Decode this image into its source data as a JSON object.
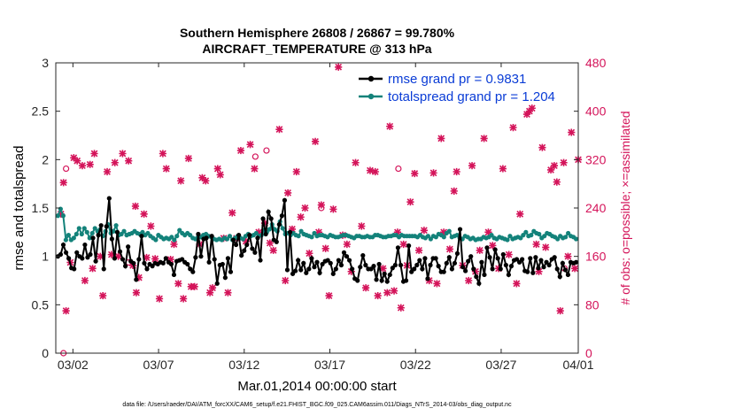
{
  "chart_data": {
    "type": "line",
    "title_line1": "Southern Hemisphere 26808 / 26867 = 99.780%",
    "title_line2": "AIRCRAFT_TEMPERATURE @ 313 hPa",
    "xlabel": "Mar.01,2014 00:00:00 start",
    "ylabel": "rmse and totalspread",
    "y2label": "# of obs: o=possible; ×=assimilated",
    "xlim": [
      0.5,
      31.0
    ],
    "ylim": [
      0,
      3
    ],
    "y2lim": [
      0,
      480
    ],
    "x_ticks": [
      {
        "x": 1.5,
        "label": "03/02"
      },
      {
        "x": 6.5,
        "label": "03/07"
      },
      {
        "x": 11.5,
        "label": "03/12"
      },
      {
        "x": 16.5,
        "label": "03/17"
      },
      {
        "x": 21.5,
        "label": "03/22"
      },
      {
        "x": 26.5,
        "label": "03/27"
      },
      {
        "x": 31.0,
        "label": "04/01"
      }
    ],
    "y_ticks": [
      {
        "v": 0,
        "label": "0"
      },
      {
        "v": 0.5,
        "label": "0.5"
      },
      {
        "v": 1,
        "label": "1"
      },
      {
        "v": 1.5,
        "label": "1.5"
      },
      {
        "v": 2,
        "label": "2"
      },
      {
        "v": 2.5,
        "label": "2.5"
      },
      {
        "v": 3,
        "label": "3"
      }
    ],
    "y2_ticks": [
      {
        "v": 0,
        "label": "0"
      },
      {
        "v": 80,
        "label": "80"
      },
      {
        "v": 160,
        "label": "160"
      },
      {
        "v": 240,
        "label": "240"
      },
      {
        "v": 320,
        "label": "320"
      },
      {
        "v": 400,
        "label": "400"
      },
      {
        "v": 480,
        "label": "480"
      }
    ],
    "series": [
      {
        "name": "rmse grand pr = 0.9831",
        "color": "#000000",
        "values": [
          1.0,
          1.02,
          1.12,
          1.04,
          0.98,
          0.88,
          0.87,
          1.04,
          1.0,
          0.98,
          1.12,
          0.99,
          1.02,
          1.19,
          0.95,
          1.22,
          1.32,
          0.87,
          1.31,
          1.6,
          1.18,
          0.98,
          1.25,
          1.05,
          0.97,
          0.9,
          1.1,
          0.95,
          0.93,
          0.76,
          0.97,
          1.21,
          0.93,
          0.87,
          0.92,
          0.9,
          0.93,
          0.92,
          0.94,
          0.93,
          0.98,
          0.94,
          0.92,
          0.81,
          0.95,
          0.96,
          0.97,
          0.94,
          0.92,
          0.87,
          0.84,
          0.99,
          1.23,
          1.0,
          1.18,
          1.19,
          0.94,
          1.21,
          0.97,
          0.72,
          0.91,
          0.92,
          0.78,
          0.98,
          0.84,
          1.17,
          1.12,
          1.22,
          1.01,
          1.06,
          1.12,
          1.22,
          1.08,
          1.04,
          1.19,
          0.96,
          1.39,
          1.23,
          1.46,
          1.39,
          1.17,
          1.15,
          1.33,
          1.42,
          1.58,
          0.86,
          1.25,
          0.82,
          0.85,
          0.96,
          0.86,
          0.93,
          0.83,
          0.87,
          0.98,
          0.89,
          0.94,
          0.83,
          0.92,
          0.95,
          0.96,
          0.93,
          0.82,
          0.87,
          0.96,
          0.91,
          1.04,
          1.0,
          0.96,
          0.87,
          0.77,
          0.75,
          0.89,
          1.01,
          0.91,
          0.87,
          0.87,
          0.9,
          0.76,
          0.92,
          0.75,
          0.82,
          0.74,
          0.81,
          0.88,
          0.91,
          1.09,
          0.91,
          0.74,
          0.75,
          1.11,
          0.84,
          0.87,
          0.91,
          0.96,
          0.87,
          0.98,
          0.77,
          0.91,
          0.98,
          0.98,
          0.9,
          0.84,
          0.84,
          0.93,
          0.99,
          0.87,
          0.93,
          1.03,
          1.28,
          0.89,
          0.85,
          0.95,
          1.0,
          0.87,
          0.79,
          0.72,
          0.94,
          0.81,
          1.09,
          0.99,
          0.87,
          1.07,
          0.98,
          0.87,
          1.02,
          0.91,
          0.81,
          0.9,
          0.96,
          0.97,
          0.94,
          0.97,
          0.85,
          0.84,
          0.98,
          0.83,
          0.99,
          0.88,
          0.96,
          0.89,
          0.94,
          0.91,
          0.97,
          0.99,
          0.87,
          0.79,
          0.93,
          0.86,
          0.81,
          0.94,
          0.93,
          0.94
        ]
      },
      {
        "name": "totalspread grand pr = 1.204",
        "color": "#13827a",
        "values": [
          1.42,
          1.49,
          1.42,
          1.17,
          1.22,
          1.17,
          1.19,
          1.23,
          1.29,
          1.23,
          1.29,
          1.25,
          1.19,
          1.24,
          1.29,
          1.26,
          1.28,
          1.21,
          1.26,
          1.33,
          1.24,
          1.26,
          1.32,
          1.22,
          1.23,
          1.26,
          1.22,
          1.23,
          1.24,
          1.26,
          1.24,
          1.23,
          1.25,
          1.22,
          1.24,
          1.21,
          1.19,
          1.17,
          1.22,
          1.2,
          1.18,
          1.19,
          1.18,
          1.2,
          1.17,
          1.21,
          1.27,
          1.24,
          1.22,
          1.24,
          1.22,
          1.19,
          1.18,
          1.2,
          1.2,
          1.22,
          1.23,
          1.21,
          1.2,
          1.18,
          1.17,
          1.18,
          1.17,
          1.19,
          1.18,
          1.21,
          1.17,
          1.19,
          1.21,
          1.19,
          1.18,
          1.21,
          1.23,
          1.21,
          1.22,
          1.24,
          1.21,
          1.22,
          1.27,
          1.25,
          1.28,
          1.33,
          1.28,
          1.26,
          1.36,
          1.29,
          1.23,
          1.24,
          1.22,
          1.24,
          1.22,
          1.21,
          1.26,
          1.23,
          1.22,
          1.21,
          1.2,
          1.24,
          1.21,
          1.22,
          1.22,
          1.21,
          1.2,
          1.22,
          1.21,
          1.2,
          1.2,
          1.21,
          1.22,
          1.22,
          1.21,
          1.2,
          1.19,
          1.21,
          1.21,
          1.2,
          1.2,
          1.21,
          1.2,
          1.2,
          1.22,
          1.22,
          1.21,
          1.2,
          1.2,
          1.21,
          1.21,
          1.22,
          1.22,
          1.2,
          1.22,
          1.21,
          1.21,
          1.21,
          1.21,
          1.21,
          1.2,
          1.22,
          1.2,
          1.19,
          1.21,
          1.18,
          1.21,
          1.2,
          1.23,
          1.22,
          1.2,
          1.24,
          1.26,
          1.2,
          1.21,
          1.22,
          1.19,
          1.18,
          1.21,
          1.2,
          1.18,
          1.19,
          1.17,
          1.18,
          1.18,
          1.2,
          1.19,
          1.2,
          1.22,
          1.19,
          1.18,
          1.2,
          1.19,
          1.18,
          1.17,
          1.21,
          1.18,
          1.19,
          1.2,
          1.19,
          1.22,
          1.25,
          1.21,
          1.22,
          1.26,
          1.24,
          1.23,
          1.19,
          1.21,
          1.24,
          1.23,
          1.21,
          1.2,
          1.18,
          1.21,
          1.19,
          1.2,
          1.24,
          1.21,
          1.2,
          1.18
        ]
      }
    ],
    "obs_assimilated": [
      [
        0.8,
        230
      ],
      [
        0.95,
        282
      ],
      [
        1.1,
        70
      ],
      [
        1.35,
        150
      ],
      [
        1.55,
        323
      ],
      [
        1.75,
        318
      ],
      [
        2.05,
        310
      ],
      [
        2.2,
        120
      ],
      [
        2.5,
        312
      ],
      [
        2.65,
        140
      ],
      [
        2.75,
        330
      ],
      [
        3.1,
        160
      ],
      [
        3.25,
        95
      ],
      [
        3.5,
        300
      ],
      [
        3.75,
        163
      ],
      [
        3.95,
        315
      ],
      [
        4.15,
        160
      ],
      [
        4.4,
        330
      ],
      [
        4.75,
        318
      ],
      [
        5.0,
        145
      ],
      [
        5.15,
        243
      ],
      [
        5.2,
        100
      ],
      [
        5.35,
        125
      ],
      [
        5.65,
        230
      ],
      [
        5.8,
        158
      ],
      [
        6.05,
        210
      ],
      [
        6.3,
        156
      ],
      [
        6.55,
        90
      ],
      [
        6.75,
        330
      ],
      [
        6.95,
        305
      ],
      [
        7.2,
        155
      ],
      [
        7.4,
        180
      ],
      [
        7.65,
        115
      ],
      [
        7.8,
        285
      ],
      [
        7.95,
        90
      ],
      [
        8.25,
        322
      ],
      [
        8.4,
        110
      ],
      [
        8.6,
        110
      ],
      [
        8.9,
        180
      ],
      [
        9.05,
        290
      ],
      [
        9.25,
        285
      ],
      [
        9.5,
        100
      ],
      [
        9.65,
        108
      ],
      [
        9.95,
        305
      ],
      [
        10.1,
        295
      ],
      [
        10.3,
        190
      ],
      [
        10.55,
        100
      ],
      [
        10.8,
        232
      ],
      [
        11.05,
        190
      ],
      [
        11.3,
        335
      ],
      [
        11.6,
        185
      ],
      [
        11.85,
        345
      ],
      [
        12.1,
        305
      ],
      [
        12.35,
        200
      ],
      [
        12.7,
        215
      ],
      [
        13.0,
        182
      ],
      [
        13.2,
        170
      ],
      [
        13.55,
        370
      ],
      [
        13.9,
        120
      ],
      [
        14.05,
        265
      ],
      [
        14.3,
        205
      ],
      [
        14.55,
        300
      ],
      [
        14.8,
        225
      ],
      [
        15.05,
        240
      ],
      [
        15.3,
        165
      ],
      [
        15.65,
        350
      ],
      [
        15.85,
        200
      ],
      [
        16.0,
        245
      ],
      [
        16.25,
        173
      ],
      [
        16.45,
        95
      ],
      [
        16.7,
        238
      ],
      [
        17.0,
        473
      ],
      [
        17.25,
        195
      ],
      [
        17.5,
        180
      ],
      [
        17.75,
        135
      ],
      [
        18.0,
        315
      ],
      [
        18.35,
        210
      ],
      [
        18.6,
        108
      ],
      [
        18.85,
        302
      ],
      [
        19.15,
        300
      ],
      [
        19.3,
        95
      ],
      [
        19.6,
        140
      ],
      [
        19.85,
        100
      ],
      [
        20.0,
        375
      ],
      [
        20.25,
        103
      ],
      [
        20.45,
        200
      ],
      [
        20.65,
        75
      ],
      [
        20.8,
        180
      ],
      [
        21.0,
        145
      ],
      [
        21.2,
        250
      ],
      [
        21.45,
        297
      ],
      [
        21.7,
        170
      ],
      [
        22.0,
        203
      ],
      [
        22.3,
        120
      ],
      [
        22.55,
        298
      ],
      [
        22.75,
        115
      ],
      [
        23.0,
        355
      ],
      [
        23.15,
        200
      ],
      [
        23.5,
        172
      ],
      [
        23.75,
        268
      ],
      [
        23.9,
        300
      ],
      [
        24.25,
        145
      ],
      [
        24.6,
        120
      ],
      [
        24.8,
        310
      ],
      [
        25.0,
        135
      ],
      [
        25.25,
        170
      ],
      [
        25.5,
        355
      ],
      [
        25.75,
        200
      ],
      [
        26.0,
        178
      ],
      [
        26.35,
        140
      ],
      [
        26.6,
        305
      ],
      [
        26.95,
        163
      ],
      [
        27.2,
        373
      ],
      [
        27.4,
        115
      ],
      [
        27.6,
        230
      ],
      [
        28.0,
        395
      ],
      [
        28.15,
        400
      ],
      [
        28.3,
        405
      ],
      [
        28.55,
        180
      ],
      [
        28.7,
        135
      ],
      [
        28.9,
        340
      ],
      [
        29.1,
        175
      ],
      [
        29.4,
        303
      ],
      [
        29.6,
        310
      ],
      [
        29.75,
        283
      ],
      [
        29.95,
        70
      ],
      [
        30.15,
        315
      ],
      [
        30.4,
        160
      ],
      [
        30.6,
        365
      ],
      [
        30.8,
        140
      ],
      [
        31.0,
        320
      ]
    ],
    "obs_possible": [
      [
        0.95,
        0
      ],
      [
        1.1,
        305
      ],
      [
        12.15,
        325
      ],
      [
        12.8,
        335
      ],
      [
        4.75,
        150
      ],
      [
        20.5,
        305
      ],
      [
        30.2,
        140
      ],
      [
        16.0,
        240
      ]
    ],
    "annotation": "data file: /Users/raeder/DAI/ATM_forcXX/CAM6_setup/f.e21.FHIST_BGC.f09_025.CAM6assim.011/Diags_NTrS_2014-03/obs_diag_output.nc"
  }
}
